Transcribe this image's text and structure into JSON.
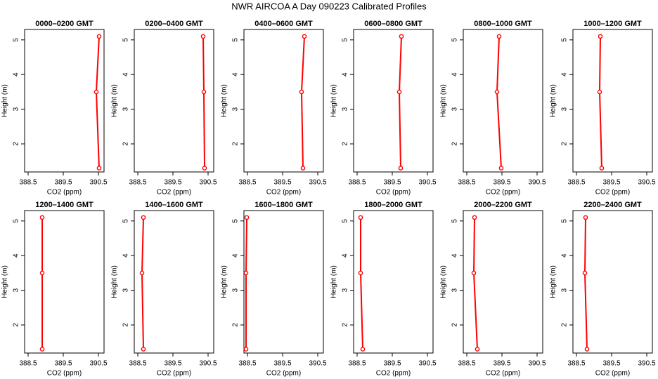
{
  "title": "NWR AIRCOA A  Day 090223  Calibrated Profiles",
  "chart_data": [
    {
      "type": "line",
      "title": "0000–0200 GMT",
      "xlabel": "CO2 (ppm)",
      "ylabel": "Height (m)",
      "color": "#ff0000",
      "x": [
        390.52,
        390.44,
        390.52
      ],
      "values": [
        5.1,
        3.5,
        1.3
      ],
      "xlim": [
        388.4,
        390.66
      ],
      "ylim": [
        1.19,
        5.3
      ],
      "xticks": [
        388.5,
        389.5,
        390.5
      ],
      "yticks": [
        2,
        3,
        4,
        5
      ]
    },
    {
      "type": "line",
      "title": "0200–0400 GMT",
      "xlabel": "CO2 (ppm)",
      "ylabel": "Height (m)",
      "color": "#ff0000",
      "x": [
        390.36,
        390.38,
        390.4
      ],
      "values": [
        5.1,
        3.5,
        1.3
      ],
      "xlim": [
        388.4,
        390.66
      ],
      "ylim": [
        1.19,
        5.3
      ],
      "xticks": [
        388.5,
        389.5,
        390.5
      ],
      "yticks": [
        2,
        3,
        4,
        5
      ]
    },
    {
      "type": "line",
      "title": "0400–0600 GMT",
      "xlabel": "CO2 (ppm)",
      "ylabel": "Height (m)",
      "color": "#ff0000",
      "x": [
        390.12,
        390.04,
        390.08
      ],
      "values": [
        5.1,
        3.5,
        1.3
      ],
      "xlim": [
        388.4,
        390.66
      ],
      "ylim": [
        1.19,
        5.3
      ],
      "xticks": [
        388.5,
        389.5,
        390.5
      ],
      "yticks": [
        2,
        3,
        4,
        5
      ]
    },
    {
      "type": "line",
      "title": "0600–0800 GMT",
      "xlabel": "CO2 (ppm)",
      "ylabel": "Height (m)",
      "color": "#ff0000",
      "x": [
        389.76,
        389.7,
        389.74
      ],
      "values": [
        5.1,
        3.5,
        1.3
      ],
      "xlim": [
        388.4,
        390.66
      ],
      "ylim": [
        1.19,
        5.3
      ],
      "xticks": [
        388.5,
        389.5,
        390.5
      ],
      "yticks": [
        2,
        3,
        4,
        5
      ]
    },
    {
      "type": "line",
      "title": "0800–1000 GMT",
      "xlabel": "CO2 (ppm)",
      "ylabel": "Height (m)",
      "color": "#ff0000",
      "x": [
        389.42,
        389.36,
        389.48
      ],
      "values": [
        5.1,
        3.5,
        1.3
      ],
      "xlim": [
        388.4,
        390.66
      ],
      "ylim": [
        1.19,
        5.3
      ],
      "xticks": [
        388.5,
        389.5,
        390.5
      ],
      "yticks": [
        2,
        3,
        4,
        5
      ]
    },
    {
      "type": "line",
      "title": "1000–1200 GMT",
      "xlabel": "CO2 (ppm)",
      "ylabel": "Height (m)",
      "color": "#ff0000",
      "x": [
        389.18,
        389.16,
        389.22
      ],
      "values": [
        5.1,
        3.5,
        1.3
      ],
      "xlim": [
        388.4,
        390.66
      ],
      "ylim": [
        1.19,
        5.3
      ],
      "xticks": [
        388.5,
        389.5,
        390.5
      ],
      "yticks": [
        2,
        3,
        4,
        5
      ]
    },
    {
      "type": "line",
      "title": "1200–1400 GMT",
      "xlabel": "CO2 (ppm)",
      "ylabel": "Height (m)",
      "color": "#ff0000",
      "x": [
        388.9,
        388.9,
        388.9
      ],
      "values": [
        5.1,
        3.5,
        1.3
      ],
      "xlim": [
        388.4,
        390.66
      ],
      "ylim": [
        1.19,
        5.3
      ],
      "xticks": [
        388.5,
        389.5,
        390.5
      ],
      "yticks": [
        2,
        3,
        4,
        5
      ]
    },
    {
      "type": "line",
      "title": "1400–1600 GMT",
      "xlabel": "CO2 (ppm)",
      "ylabel": "Height (m)",
      "color": "#ff0000",
      "x": [
        388.66,
        388.62,
        388.66
      ],
      "values": [
        5.1,
        3.5,
        1.3
      ],
      "xlim": [
        388.4,
        390.66
      ],
      "ylim": [
        1.19,
        5.3
      ],
      "xticks": [
        388.5,
        389.5,
        390.5
      ],
      "yticks": [
        2,
        3,
        4,
        5
      ]
    },
    {
      "type": "line",
      "title": "1600–1800 GMT",
      "xlabel": "CO2 (ppm)",
      "ylabel": "Height (m)",
      "color": "#ff0000",
      "x": [
        388.48,
        388.46,
        388.46
      ],
      "values": [
        5.1,
        3.5,
        1.3
      ],
      "xlim": [
        388.4,
        390.66
      ],
      "ylim": [
        1.19,
        5.3
      ],
      "xticks": [
        388.5,
        389.5,
        390.5
      ],
      "yticks": [
        2,
        3,
        4,
        5
      ]
    },
    {
      "type": "line",
      "title": "1800–2000 GMT",
      "xlabel": "CO2 (ppm)",
      "ylabel": "Height (m)",
      "color": "#ff0000",
      "x": [
        388.6,
        388.6,
        388.66
      ],
      "values": [
        5.1,
        3.5,
        1.3
      ],
      "xlim": [
        388.4,
        390.66
      ],
      "ylim": [
        1.19,
        5.3
      ],
      "xticks": [
        388.5,
        389.5,
        390.5
      ],
      "yticks": [
        2,
        3,
        4,
        5
      ]
    },
    {
      "type": "line",
      "title": "2000–2200 GMT",
      "xlabel": "CO2 (ppm)",
      "ylabel": "Height (m)",
      "color": "#ff0000",
      "x": [
        388.72,
        388.7,
        388.8
      ],
      "values": [
        5.1,
        3.5,
        1.3
      ],
      "xlim": [
        388.4,
        390.66
      ],
      "ylim": [
        1.19,
        5.3
      ],
      "xticks": [
        388.5,
        389.5,
        390.5
      ],
      "yticks": [
        2,
        3,
        4,
        5
      ]
    },
    {
      "type": "line",
      "title": "2200–2400 GMT",
      "xlabel": "CO2 (ppm)",
      "ylabel": "Height (m)",
      "color": "#ff0000",
      "x": [
        388.76,
        388.74,
        388.8
      ],
      "values": [
        5.1,
        3.5,
        1.3
      ],
      "xlim": [
        388.4,
        390.66
      ],
      "ylim": [
        1.19,
        5.3
      ],
      "xticks": [
        388.5,
        389.5,
        390.5
      ],
      "yticks": [
        2,
        3,
        4,
        5
      ]
    }
  ]
}
